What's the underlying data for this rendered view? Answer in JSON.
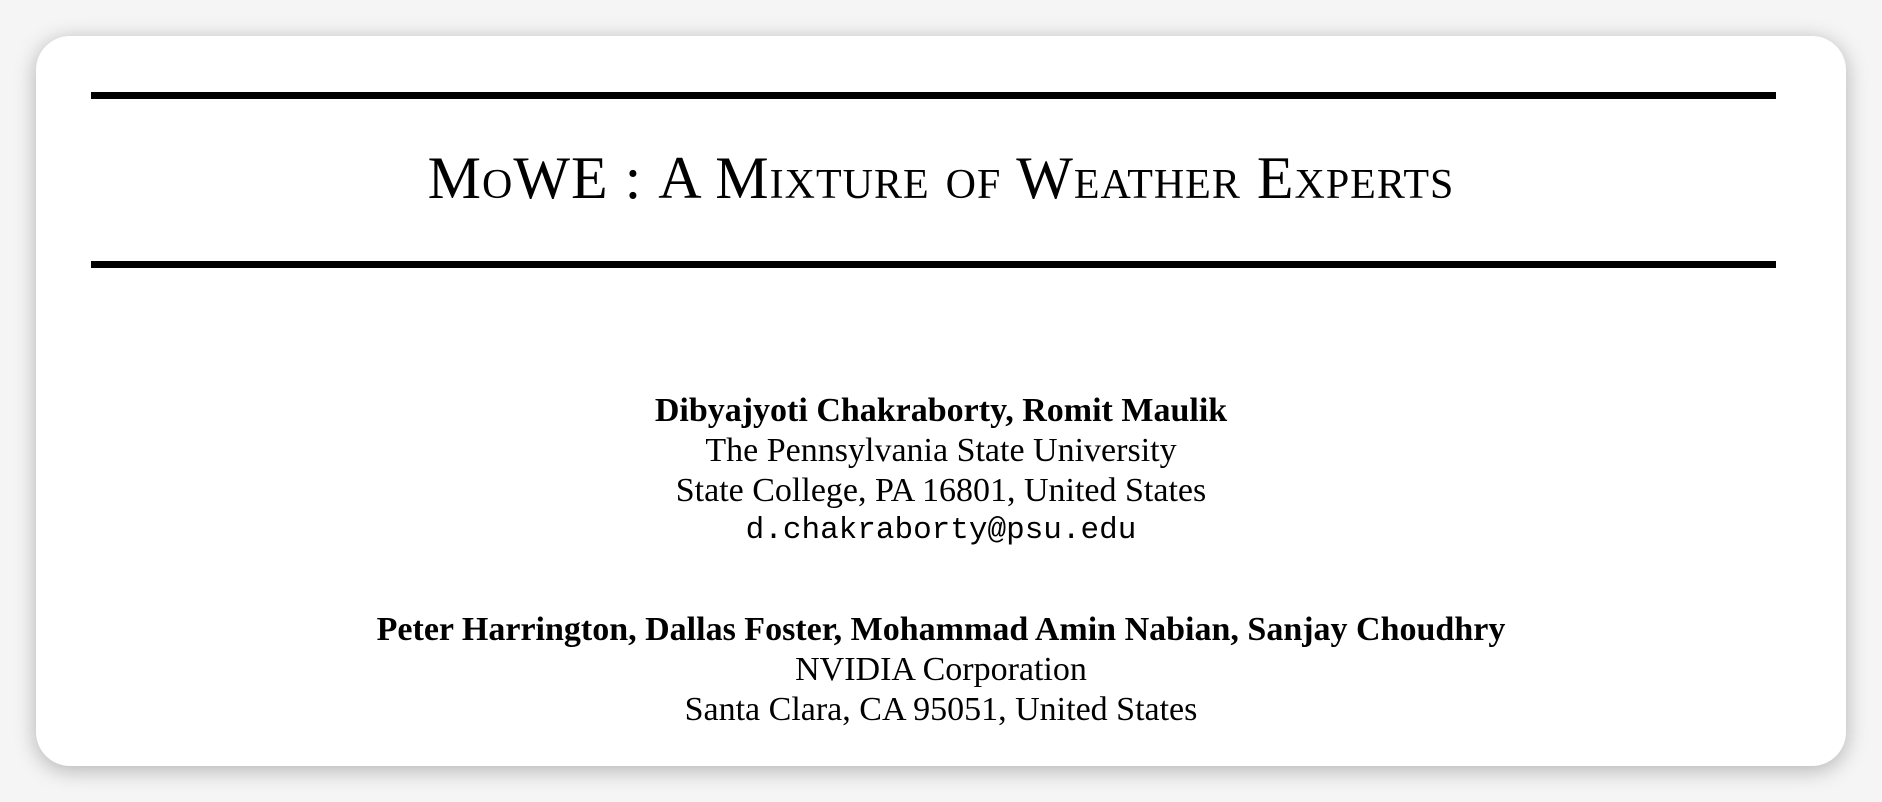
{
  "paper": {
    "title_main": "MoWE",
    "title_separator": " : ",
    "title_rest": "A Mixture of Weather Experts"
  },
  "author_groups": [
    {
      "names": "Dibyajyoti Chakraborty, Romit Maulik",
      "affiliation": "The Pennsylvania State University",
      "address": "State College, PA 16801, United States",
      "email": "d.chakraborty@psu.edu"
    },
    {
      "names": "Peter Harrington, Dallas Foster, Mohammad Amin Nabian, Sanjay Choudhry",
      "affiliation": "NVIDIA Corporation",
      "address": "Santa Clara, CA 95051, United States"
    }
  ]
}
